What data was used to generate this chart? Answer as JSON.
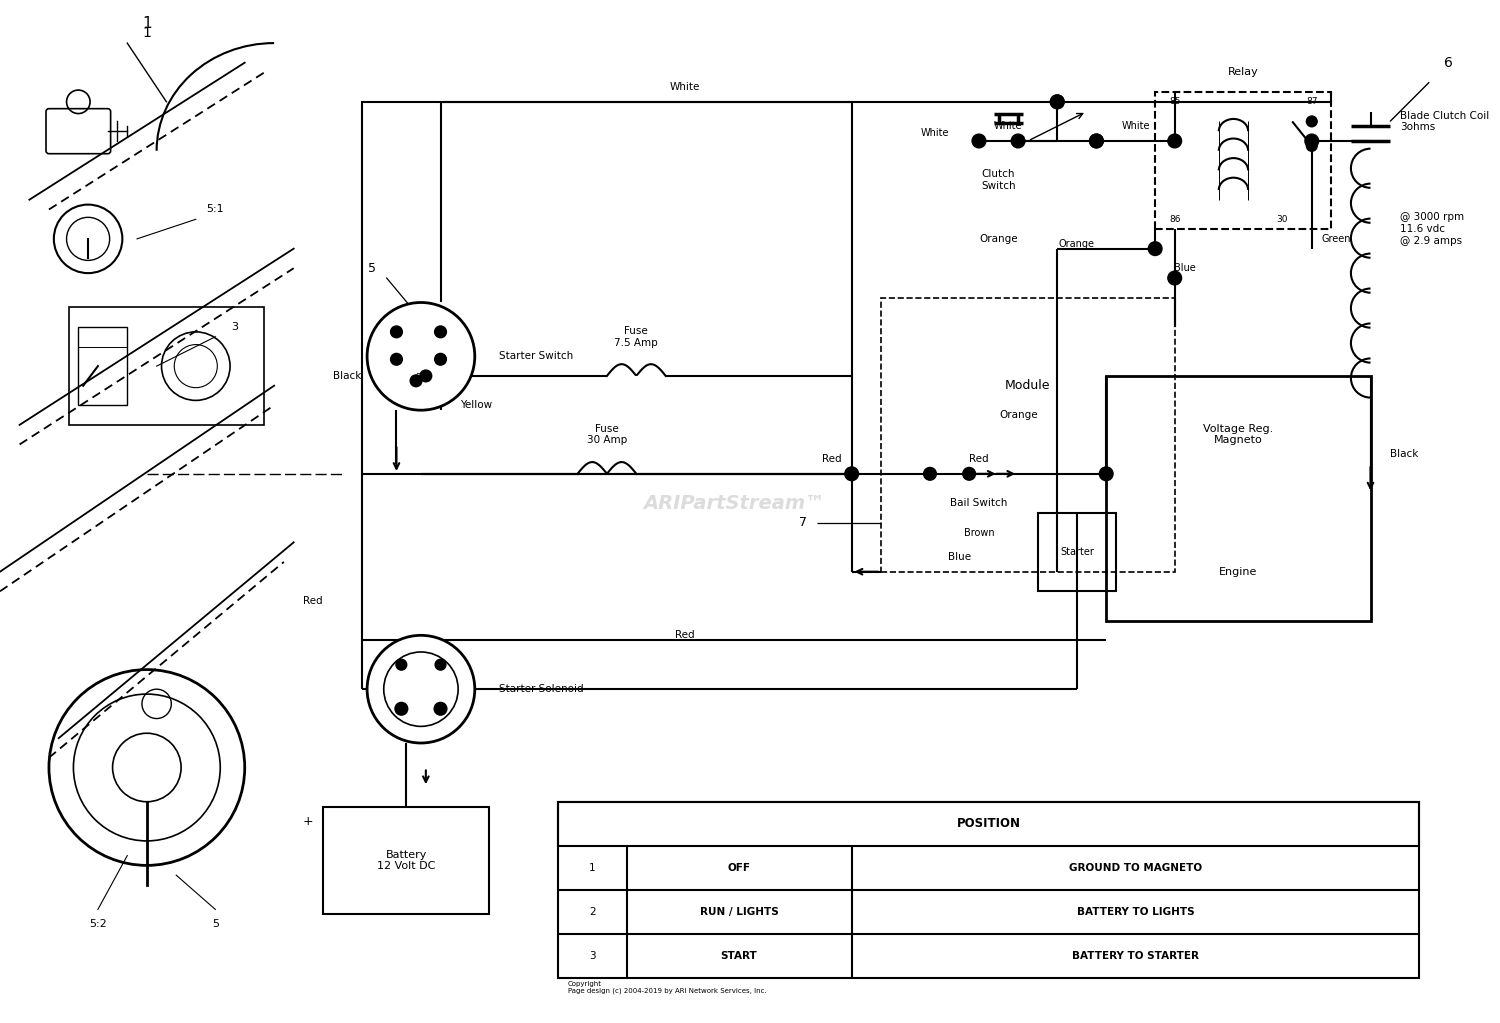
{
  "bg_color": "#ffffff",
  "watermark": "ARIPartStream™",
  "copyright": "Copyright\nPage design (c) 2004-2019 by ARI Network Services, Inc.",
  "relay_label": "Relay",
  "clutch_switch_label": "Clutch\nSwitch",
  "module_label": "Module",
  "bail_switch_label": "Bail Switch",
  "blade_clutch_label": "Blade Clutch Coil\n3ohms",
  "specs_label": "@ 3000 rpm\n11.6 vdc\n@ 2.9 amps",
  "starter_switch_label": "Starter Switch",
  "starter_solenoid_label": "Starter Solenoid",
  "battery_label": "Battery\n12 Volt DC",
  "voltage_reg_label": "Voltage Reg.\nMagneto\n\nEngine",
  "starter_box_label": "Starter",
  "fuse_75_label": "Fuse\n7.5 Amp",
  "fuse_30_label": "Fuse\n30 Amp",
  "position_table": {
    "header": "POSITION",
    "rows": [
      [
        "1",
        "OFF",
        "GROUND TO MAGNETO"
      ],
      [
        "2",
        "RUN / LIGHTS",
        "BATTERY TO LIGHTS"
      ],
      [
        "3",
        "START",
        "BATTERY TO STARTER"
      ]
    ]
  }
}
